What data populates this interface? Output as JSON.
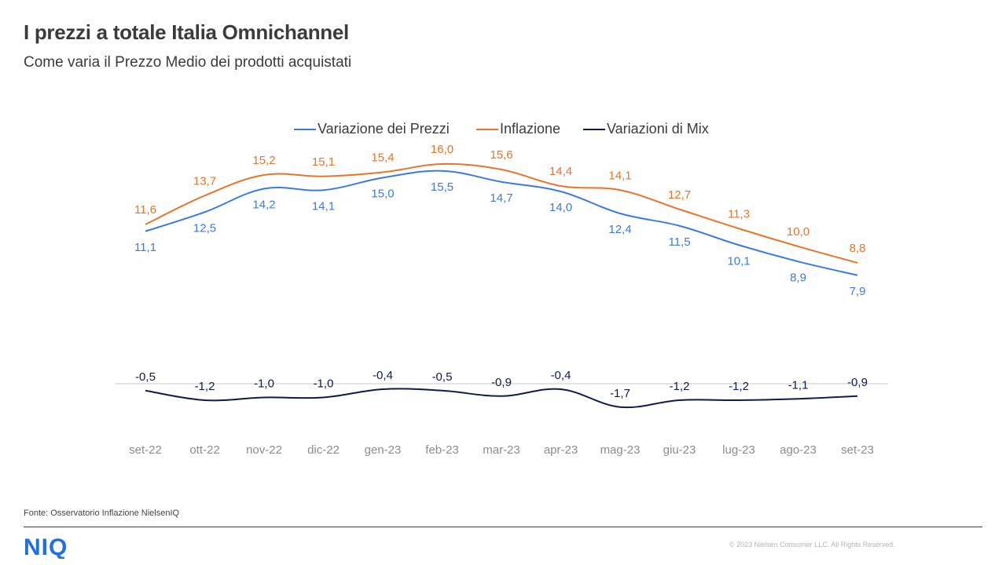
{
  "header": {
    "title": "I prezzi a totale Italia Omnichannel",
    "subtitle": "Come varia il Prezzo  Medio dei prodotti acquistati"
  },
  "footer": {
    "source": "Fonte: Osservatorio Inflazione NielsenIQ",
    "logo_text": "NIQ",
    "copyright": "© 2023  Nielsen Consumer LLC. All Rights Reserved."
  },
  "colors": {
    "prezzi": "#3b7be0",
    "inflazione": "#e8742a",
    "mix": "#0f1a4d",
    "axis": "#e3e3e3",
    "logo": "#1f6fe5"
  },
  "chart_data": {
    "type": "line",
    "categories": [
      "set-22",
      "ott-22",
      "nov-22",
      "dic-22",
      "gen-23",
      "feb-23",
      "mar-23",
      "apr-23",
      "mag-23",
      "giu-23",
      "lug-23",
      "ago-23",
      "set-23"
    ],
    "series": [
      {
        "name": "Variazione dei Prezzi",
        "color": "#3b7be0",
        "values": [
          11.1,
          12.5,
          14.2,
          14.1,
          15.0,
          15.5,
          14.7,
          14.0,
          12.4,
          11.5,
          10.1,
          8.9,
          7.9
        ],
        "labels": [
          "11,1",
          "12,5",
          "14,2",
          "14,1",
          "15,0",
          "15,5",
          "14,7",
          "14,0",
          "12,4",
          "11,5",
          "10,1",
          "8,9",
          "7,9"
        ]
      },
      {
        "name": "Inflazione",
        "color": "#e8742a",
        "values": [
          11.6,
          13.7,
          15.2,
          15.1,
          15.4,
          16.0,
          15.6,
          14.4,
          14.1,
          12.7,
          11.3,
          10.0,
          8.8
        ],
        "labels": [
          "11,6",
          "13,7",
          "15,2",
          "15,1",
          "15,4",
          "16,0",
          "15,6",
          "14,4",
          "14,1",
          "12,7",
          "11,3",
          "10,0",
          "8,8"
        ]
      },
      {
        "name": "Variazioni di Mix",
        "color": "#0f1a4d",
        "values": [
          -0.5,
          -1.2,
          -1.0,
          -1.0,
          -0.4,
          -0.5,
          -0.9,
          -0.4,
          -1.7,
          -1.2,
          -1.2,
          -1.1,
          -0.9
        ],
        "labels": [
          "-0,5",
          "-1,2",
          "-1,0",
          "-1,0",
          "-0,4",
          "-0,5",
          "-0,9",
          "-0,4",
          "-1,7",
          "-1,2",
          "-1,2",
          "-1,1",
          "-0,9"
        ]
      }
    ],
    "legend_position": "top",
    "grid": false,
    "zero_line": true
  }
}
